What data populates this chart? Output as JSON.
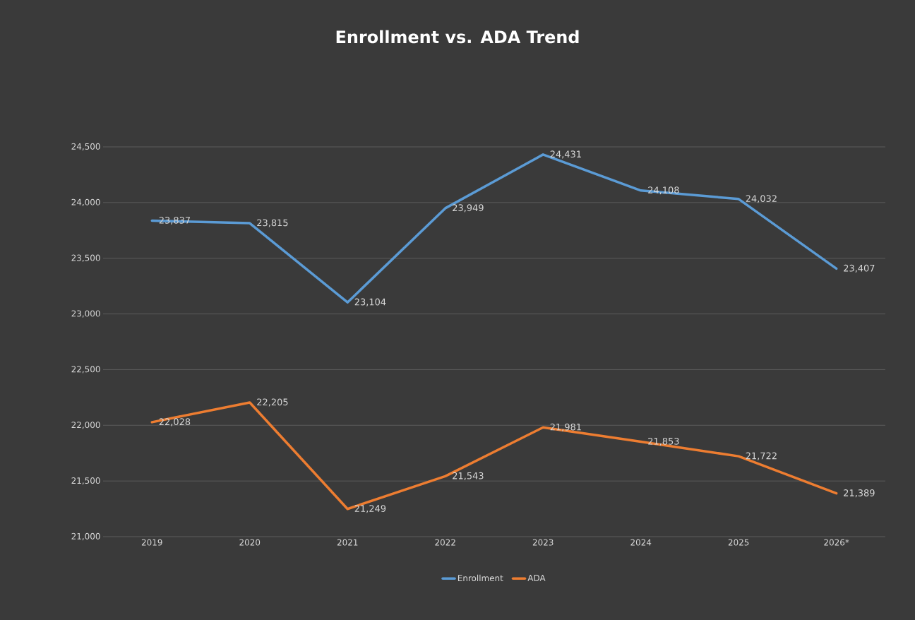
{
  "chart_data": {
    "type": "line",
    "title": "Enrollment vs. ADA Trend",
    "categories": [
      "2019",
      "2020",
      "2021",
      "2022",
      "2023",
      "2024",
      "2025",
      "2026*"
    ],
    "series": [
      {
        "name": "Enrollment",
        "color": "#5b9bd5",
        "values": [
          23837,
          23815,
          23104,
          23949,
          24431,
          24108,
          24032,
          23407
        ],
        "value_labels": [
          "23,837",
          "23,815",
          "23,104",
          "23,949",
          "24,431",
          "24,108",
          "24,032",
          "23,407"
        ]
      },
      {
        "name": "ADA",
        "color": "#ed7d31",
        "values": [
          22028,
          22205,
          21249,
          21543,
          21981,
          21853,
          21722,
          21389
        ],
        "value_labels": [
          "22,028",
          "22,205",
          "21,249",
          "21,543",
          "21,981",
          "21,853",
          "21,722",
          "21,389"
        ]
      }
    ],
    "ylim": [
      21000,
      24500
    ],
    "yticks": [
      {
        "value": 21000,
        "label": "21,000"
      },
      {
        "value": 21500,
        "label": "21,500"
      },
      {
        "value": 22000,
        "label": "22,000"
      },
      {
        "value": 22500,
        "label": "22,500"
      },
      {
        "value": 23000,
        "label": "23,000"
      },
      {
        "value": 23500,
        "label": "23,500"
      },
      {
        "value": 24000,
        "label": "24,000"
      },
      {
        "value": 24500,
        "label": "24,500"
      }
    ],
    "grid": "y",
    "legend": "bottom",
    "marker": "none",
    "line_style": "solid"
  }
}
